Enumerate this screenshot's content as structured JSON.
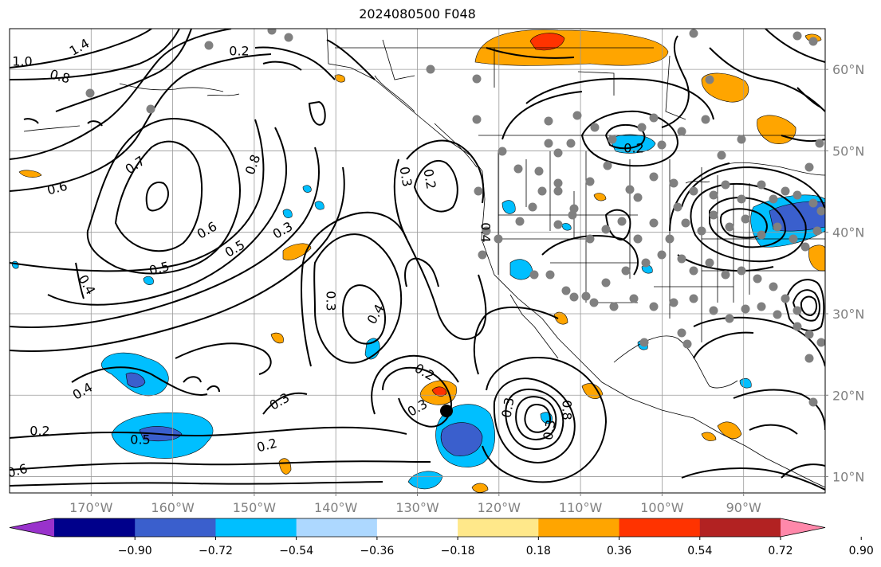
{
  "title": "2024080500 F048",
  "map": {
    "lon_range": [
      -180,
      -80
    ],
    "lat_range": [
      8,
      65
    ],
    "lon_ticks": [
      {
        "value": -170,
        "label": "170°W"
      },
      {
        "value": -160,
        "label": "160°W"
      },
      {
        "value": -150,
        "label": "150°W"
      },
      {
        "value": -140,
        "label": "140°W"
      },
      {
        "value": -130,
        "label": "130°W"
      },
      {
        "value": -120,
        "label": "120°W"
      },
      {
        "value": -110,
        "label": "110°W"
      },
      {
        "value": -100,
        "label": "100°W"
      },
      {
        "value": -90,
        "label": "90°W"
      }
    ],
    "lat_ticks": [
      {
        "value": 10,
        "label": "10°N"
      },
      {
        "value": 20,
        "label": "20°N"
      },
      {
        "value": 30,
        "label": "30°N"
      },
      {
        "value": 40,
        "label": "40°N"
      },
      {
        "value": 50,
        "label": "50°N"
      },
      {
        "value": 60,
        "label": "60°N"
      }
    ],
    "contour_labels": [
      "1.4",
      "1.0",
      "0.8",
      "0.7",
      "0.6",
      "0.5",
      "0.4",
      "0.3",
      "0.2",
      "0.8",
      "0.6",
      "0.5",
      "0.3",
      "0.4",
      "0.3",
      "0.2",
      "0.4",
      "0.2",
      "0.3",
      "0.3",
      "0.2",
      "0.2",
      "0.4",
      "0.5",
      "0.6",
      "0.8",
      "0.3",
      "0.3",
      "0.2"
    ],
    "colors": {
      "orange": "#ffa500",
      "red": "#ff3300",
      "cyan": "#00bfff",
      "blue": "#3a5fcd",
      "station": "#808080",
      "cyclone_marker": "#000000"
    }
  },
  "colorbar": {
    "colors": [
      "#9932cc",
      "#00008b",
      "#3a5fcd",
      "#00bfff",
      "#add8ff",
      "#ffffff",
      "#ffe88a",
      "#ffa500",
      "#ff3300",
      "#b22222",
      "#ff88aa"
    ],
    "ticks": [
      "−0.90",
      "−0.72",
      "−0.54",
      "−0.36",
      "−0.18",
      "0.18",
      "0.36",
      "0.54",
      "0.72",
      "0.90"
    ]
  }
}
